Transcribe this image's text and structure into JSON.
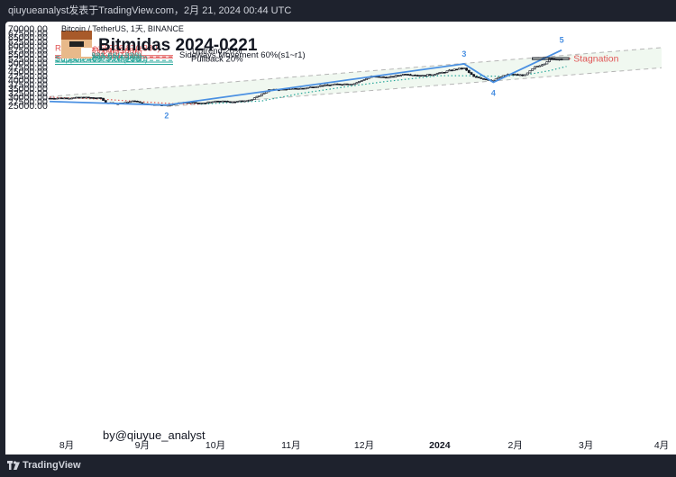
{
  "header": {
    "caption": "qiuyueanalyst发表于TradingView.com，2月 21, 2024 00:44 UTC"
  },
  "footer": {
    "brand": "TradingView"
  },
  "chart_data": {
    "type": "candlestick",
    "symbol": "Bitcoin / TetherUS, 1天, BINANCE",
    "title": "Bitmidas 2024-0221",
    "watermark": "by@qiuyue_analyst",
    "y_ticks": [
      "70000.00",
      "67500.00",
      "65000.00",
      "62500.00",
      "60000.00",
      "57500.00",
      "55000.00",
      "52500.00",
      "50000.00",
      "47500.00",
      "45000.00",
      "42500.00",
      "40000.00",
      "37500.00",
      "35000.00",
      "32500.00",
      "30000.00",
      "27500.00",
      "25000.00"
    ],
    "ylim": [
      23200,
      71000
    ],
    "x_ticks": [
      {
        "label": "8月",
        "date": "2023-08-01"
      },
      {
        "label": "9月",
        "date": "2023-09-01"
      },
      {
        "label": "10月",
        "date": "2023-10-01"
      },
      {
        "label": "11月",
        "date": "2023-11-01"
      },
      {
        "label": "12月",
        "date": "2023-12-01"
      },
      {
        "label": "2024",
        "date": "2024-01-01",
        "bold": true
      },
      {
        "label": "2月",
        "date": "2024-02-01"
      },
      {
        "label": "3月",
        "date": "2024-03-01"
      },
      {
        "label": "4月",
        "date": "2024-04-01"
      }
    ],
    "xlim": [
      "2023-07-25",
      "2024-04-01"
    ],
    "levels": [
      {
        "label": "Resistance:55736.87(±380)",
        "value": 55736.87,
        "color": "#e05555"
      },
      {
        "label": "R2:54371.64(±360)",
        "value": 54371.64,
        "color": "#e05555"
      },
      {
        "label": "R1:53334.45(±330)",
        "value": 53334.45,
        "color": "#e05555",
        "dashed": true
      },
      {
        "label": "S1:51321.66(±320)",
        "value": 51321.66,
        "color": "#26a69a",
        "dashed": true
      },
      {
        "label": "S2:50290.39(±360)",
        "value": 50290.39,
        "color": "#26a69a"
      },
      {
        "label": "Support:48979.04(±380)",
        "value": 48979.04,
        "color": "#26a69a"
      }
    ],
    "scenarios": [
      "Uptrend  20%",
      "Sideways Movement 60%(s1~r1)",
      "Pullback  20%"
    ],
    "wave_labels": [
      "2",
      "3",
      "4",
      "5"
    ],
    "wave_points": [
      {
        "date": "2023-07-25",
        "value": 27300
      },
      {
        "date": "2023-09-11",
        "value": 25200,
        "label": "2"
      },
      {
        "date": "2024-01-11",
        "value": 49300,
        "label": "3"
      },
      {
        "date": "2024-01-23",
        "value": 38500,
        "label": "4"
      },
      {
        "date": "2024-02-20",
        "value": 57300,
        "label": "5"
      }
    ],
    "channel_upper": [
      {
        "date": "2023-07-25",
        "value": 30200
      },
      {
        "date": "2024-04-01",
        "value": 58800
      }
    ],
    "channel_lower": [
      {
        "date": "2023-09-11",
        "value": 24300
      },
      {
        "date": "2024-04-01",
        "value": 47000
      }
    ],
    "annotation": {
      "text": "Stagnation",
      "box": [
        {
          "date": "2024-02-08",
          "value": 52900
        },
        {
          "date": "2024-02-23",
          "value": 51800
        }
      ]
    },
    "ma_dotted": [
      {
        "date": "2023-07-25",
        "value": 29800
      },
      {
        "date": "2023-08-15",
        "value": 28700
      },
      {
        "date": "2023-09-01",
        "value": 27100
      },
      {
        "date": "2023-09-15",
        "value": 25900
      },
      {
        "date": "2023-09-25",
        "value": 25700
      },
      {
        "date": "2023-10-20",
        "value": 27600
      },
      {
        "date": "2023-11-05",
        "value": 32000
      },
      {
        "date": "2023-11-25",
        "value": 36200
      },
      {
        "date": "2023-12-10",
        "value": 39000
      },
      {
        "date": "2024-01-01",
        "value": 42400
      },
      {
        "date": "2024-01-15",
        "value": 42300
      },
      {
        "date": "2024-01-25",
        "value": 42000
      },
      {
        "date": "2024-02-05",
        "value": 42800
      },
      {
        "date": "2024-02-15",
        "value": 45300
      },
      {
        "date": "2024-02-22",
        "value": 47800
      }
    ],
    "candles": [
      {
        "date": "2023-07-25",
        "close": 29200
      },
      {
        "date": "2023-08-01",
        "close": 29300
      },
      {
        "date": "2023-08-08",
        "close": 29700
      },
      {
        "date": "2023-08-15",
        "close": 29200
      },
      {
        "date": "2023-08-17",
        "close": 26600
      },
      {
        "date": "2023-08-22",
        "close": 26100
      },
      {
        "date": "2023-08-29",
        "close": 27700
      },
      {
        "date": "2023-09-01",
        "close": 25900
      },
      {
        "date": "2023-09-11",
        "close": 25200
      },
      {
        "date": "2023-09-18",
        "close": 26800
      },
      {
        "date": "2023-09-25",
        "close": 26300
      },
      {
        "date": "2023-10-02",
        "close": 27500
      },
      {
        "date": "2023-10-09",
        "close": 27100
      },
      {
        "date": "2023-10-16",
        "close": 28400
      },
      {
        "date": "2023-10-23",
        "close": 34000
      },
      {
        "date": "2023-10-30",
        "close": 34500
      },
      {
        "date": "2023-11-06",
        "close": 35000
      },
      {
        "date": "2023-11-13",
        "close": 36500
      },
      {
        "date": "2023-11-20",
        "close": 37400
      },
      {
        "date": "2023-11-27",
        "close": 37800
      },
      {
        "date": "2023-12-04",
        "close": 41900
      },
      {
        "date": "2023-12-11",
        "close": 41300
      },
      {
        "date": "2023-12-18",
        "close": 43500
      },
      {
        "date": "2023-12-25",
        "close": 42300
      },
      {
        "date": "2024-01-01",
        "close": 43900
      },
      {
        "date": "2024-01-08",
        "close": 46300
      },
      {
        "date": "2024-01-11",
        "close": 46600
      },
      {
        "date": "2024-01-15",
        "close": 41700
      },
      {
        "date": "2024-01-22",
        "close": 39800
      },
      {
        "date": "2024-01-23",
        "close": 39900
      },
      {
        "date": "2024-01-29",
        "close": 43200
      },
      {
        "date": "2024-02-05",
        "close": 42600
      },
      {
        "date": "2024-02-09",
        "close": 47300
      },
      {
        "date": "2024-02-13",
        "close": 49700
      },
      {
        "date": "2024-02-15",
        "close": 52000
      },
      {
        "date": "2024-02-20",
        "close": 52200
      }
    ]
  },
  "colors": {
    "blue": "#3179f5",
    "red": "#e05555",
    "green": "#26a69a",
    "wave": "#4a90e2",
    "bg": "#1e222d"
  }
}
